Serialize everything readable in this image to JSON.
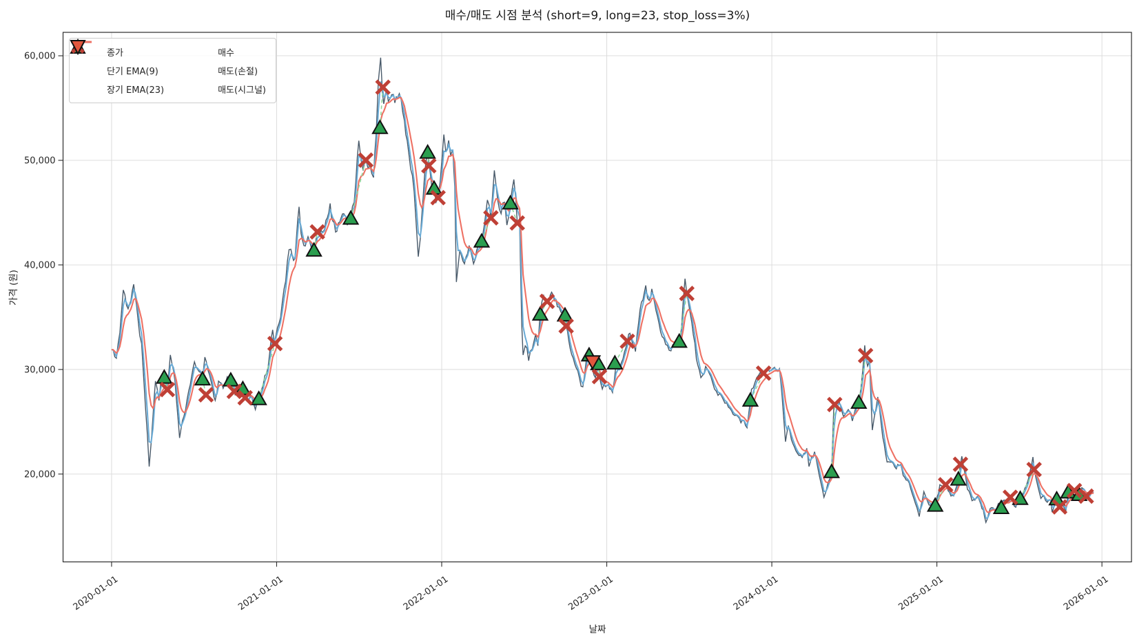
{
  "title": "매수/매도 시점 분석 (short=9, long=23, stop_loss=3%)",
  "axes": {
    "xlabel": "날짜",
    "ylabel": "가격 (원)"
  },
  "legend": {
    "close": "종가",
    "ema_short": "단기 EMA(9)",
    "ema_long": "장기 EMA(23)",
    "buy": "매수",
    "sell_stop": "매도(손절)",
    "sell_signal": "매도(시그널)"
  },
  "colors": {
    "close": "#3e5061",
    "ema_short": "#68aad5",
    "ema_long": "#ee7164",
    "buy": "#2b9e4f",
    "sell_stop": "#bf4036",
    "sell_signal": "#e2573e",
    "connector": "#8fd79b",
    "grid": "#dcdcdc",
    "spine": "#2b2b2b",
    "text": "#262626"
  },
  "chart_data": {
    "type": "line",
    "title": "매수/매도 시점 분석 (short=9, long=23, stop_loss=3%)",
    "xlabel": "날짜",
    "ylabel": "가격 (원)",
    "x_unit": "decimal_year",
    "y_unit": "KRW",
    "grid": true,
    "legend_position": "upper left",
    "xlim": [
      2019.706,
      2026.179
    ],
    "ylim": [
      11600,
      62240
    ],
    "x_ticks": [
      {
        "label": "2020-01-01",
        "t": 2020
      },
      {
        "label": "2021-01-01",
        "t": 2021
      },
      {
        "label": "2022-01-01",
        "t": 2022
      },
      {
        "label": "2023-01-01",
        "t": 2023
      },
      {
        "label": "2024-01-01",
        "t": 2024
      },
      {
        "label": "2025-01-01",
        "t": 2025
      },
      {
        "label": "2026-01-01",
        "t": 2026
      }
    ],
    "y_ticks": [
      {
        "label": "20,000",
        "value": 20000
      },
      {
        "label": "30,000",
        "value": 30000
      },
      {
        "label": "40,000",
        "value": 40000
      },
      {
        "label": "50,000",
        "value": 50000
      },
      {
        "label": "60,000",
        "value": 60000
      }
    ],
    "series_meta": {
      "close_label": "종가",
      "ema_short_label": "단기 EMA(9)",
      "ema_short_period": 9,
      "ema_long_label": "장기 EMA(23)",
      "ema_long_period": 23,
      "stop_loss_pct": 3
    },
    "close_price_anchors": [
      [
        2020.0,
        31900
      ],
      [
        2020.029,
        31070
      ],
      [
        2020.05,
        33500
      ],
      [
        2020.071,
        37600
      ],
      [
        2020.1,
        35800
      ],
      [
        2020.134,
        38150
      ],
      [
        2020.159,
        35000
      ],
      [
        2020.182,
        32480
      ],
      [
        2020.205,
        26500
      ],
      [
        2020.228,
        20720
      ],
      [
        2020.251,
        25500
      ],
      [
        2020.266,
        28890
      ],
      [
        2020.287,
        27040
      ],
      [
        2020.301,
        29215
      ],
      [
        2020.322,
        29000
      ],
      [
        2020.338,
        28100
      ],
      [
        2020.356,
        31390
      ],
      [
        2020.384,
        28890
      ],
      [
        2020.412,
        23450
      ],
      [
        2020.438,
        25500
      ],
      [
        2020.468,
        28000
      ],
      [
        2020.502,
        30740
      ],
      [
        2020.53,
        29800
      ],
      [
        2020.551,
        29100
      ],
      [
        2020.565,
        31180
      ],
      [
        2020.593,
        29500
      ],
      [
        2020.628,
        27040
      ],
      [
        2020.648,
        28890
      ],
      [
        2020.676,
        28200
      ],
      [
        2020.701,
        29300
      ],
      [
        2020.722,
        29000
      ],
      [
        2020.743,
        27905
      ],
      [
        2020.764,
        27600
      ],
      [
        2020.795,
        28170
      ],
      [
        2020.809,
        27295
      ],
      [
        2020.831,
        27000
      ],
      [
        2020.848,
        27400
      ],
      [
        2020.871,
        26165
      ],
      [
        2020.892,
        27210
      ],
      [
        2020.919,
        28600
      ],
      [
        2020.948,
        30200
      ],
      [
        2020.976,
        33790
      ],
      [
        2020.985,
        32600
      ],
      [
        2021.024,
        34985
      ],
      [
        2021.045,
        37700
      ],
      [
        2021.065,
        40330
      ],
      [
        2021.086,
        41500
      ],
      [
        2021.111,
        40600
      ],
      [
        2021.136,
        45555
      ],
      [
        2021.148,
        43000
      ],
      [
        2021.165,
        41850
      ],
      [
        2021.19,
        42700
      ],
      [
        2021.211,
        41600
      ],
      [
        2021.226,
        41420
      ],
      [
        2021.247,
        43160
      ],
      [
        2021.269,
        43300
      ],
      [
        2021.29,
        43400
      ],
      [
        2021.307,
        44500
      ],
      [
        2021.324,
        45880
      ],
      [
        2021.34,
        44200
      ],
      [
        2021.357,
        43140
      ],
      [
        2021.382,
        44100
      ],
      [
        2021.407,
        44900
      ],
      [
        2021.428,
        43800
      ],
      [
        2021.449,
        44470
      ],
      [
        2021.47,
        46000
      ],
      [
        2021.498,
        51875
      ],
      [
        2021.512,
        50000
      ],
      [
        2021.524,
        49020
      ],
      [
        2021.54,
        50020
      ],
      [
        2021.553,
        49300
      ],
      [
        2021.566,
        49480
      ],
      [
        2021.587,
        48370
      ],
      [
        2021.603,
        52500
      ],
      [
        2021.616,
        57520
      ],
      [
        2021.63,
        59820
      ],
      [
        2021.641,
        56500
      ],
      [
        2021.649,
        55400
      ],
      [
        2021.666,
        56800
      ],
      [
        2021.687,
        55900
      ],
      [
        2021.708,
        56300
      ],
      [
        2021.733,
        56000
      ],
      [
        2021.754,
        55820
      ],
      [
        2021.774,
        53800
      ],
      [
        2021.791,
        51900
      ],
      [
        2021.812,
        49150
      ],
      [
        2021.833,
        47000
      ],
      [
        2021.845,
        44000
      ],
      [
        2021.858,
        40790
      ],
      [
        2021.87,
        42500
      ],
      [
        2021.887,
        46300
      ],
      [
        2021.904,
        49800
      ],
      [
        2021.915,
        50780
      ],
      [
        2021.929,
        49000
      ],
      [
        2021.941,
        47300
      ],
      [
        2021.954,
        47340
      ],
      [
        2021.966,
        46000
      ],
      [
        2021.978,
        46430
      ],
      [
        2021.991,
        48000
      ],
      [
        2022.013,
        52470
      ],
      [
        2022.025,
        50800
      ],
      [
        2022.042,
        51900
      ],
      [
        2022.054,
        50500
      ],
      [
        2022.067,
        51000
      ],
      [
        2022.079,
        47500
      ],
      [
        2022.089,
        38365
      ],
      [
        2022.11,
        41420
      ],
      [
        2022.138,
        40110
      ],
      [
        2022.166,
        41850
      ],
      [
        2022.193,
        40110
      ],
      [
        2022.221,
        41850
      ],
      [
        2022.242,
        42280
      ],
      [
        2022.277,
        46210
      ],
      [
        2022.298,
        44500
      ],
      [
        2022.319,
        49040
      ],
      [
        2022.339,
        46210
      ],
      [
        2022.36,
        44900
      ],
      [
        2022.381,
        45995
      ],
      [
        2022.395,
        43810
      ],
      [
        2022.416,
        45930
      ],
      [
        2022.437,
        48170
      ],
      [
        2022.458,
        44010
      ],
      [
        2022.472,
        44030
      ],
      [
        2022.479,
        38800
      ],
      [
        2022.485,
        34225
      ],
      [
        2022.493,
        31390
      ],
      [
        2022.506,
        32265
      ],
      [
        2022.527,
        30845
      ],
      [
        2022.548,
        31940
      ],
      [
        2022.569,
        33355
      ],
      [
        2022.583,
        32265
      ],
      [
        2022.597,
        35500
      ],
      [
        2022.618,
        37060
      ],
      [
        2022.639,
        36515
      ],
      [
        2022.666,
        37390
      ],
      [
        2022.701,
        36000
      ],
      [
        2022.722,
        35500
      ],
      [
        2022.747,
        35210
      ],
      [
        2022.754,
        34160
      ],
      [
        2022.778,
        32045
      ],
      [
        2022.806,
        30520
      ],
      [
        2022.834,
        29215
      ],
      [
        2022.855,
        28345
      ],
      [
        2022.882,
        31720
      ],
      [
        2022.893,
        31390
      ],
      [
        2022.914,
        30000
      ],
      [
        2022.931,
        29215
      ],
      [
        2022.949,
        30565
      ],
      [
        2022.956,
        29320
      ],
      [
        2022.973,
        28125
      ],
      [
        2023.001,
        28450
      ],
      [
        2023.035,
        27795
      ],
      [
        2023.056,
        30520
      ],
      [
        2023.077,
        30000
      ],
      [
        2023.098,
        31000
      ],
      [
        2023.125,
        32700
      ],
      [
        2023.14,
        33460
      ],
      [
        2023.174,
        31720
      ],
      [
        2023.202,
        35755
      ],
      [
        2023.236,
        38040
      ],
      [
        2023.257,
        36600
      ],
      [
        2023.273,
        37710
      ],
      [
        2023.307,
        35100
      ],
      [
        2023.336,
        33135
      ],
      [
        2023.378,
        31830
      ],
      [
        2023.411,
        32300
      ],
      [
        2023.439,
        32700
      ],
      [
        2023.453,
        33920
      ],
      [
        2023.474,
        38690
      ],
      [
        2023.485,
        37270
      ],
      [
        2023.515,
        34500
      ],
      [
        2023.543,
        31000
      ],
      [
        2023.57,
        29215
      ],
      [
        2023.599,
        30300
      ],
      [
        2023.62,
        29670
      ],
      [
        2023.653,
        28125
      ],
      [
        2023.695,
        27470
      ],
      [
        2023.737,
        26385
      ],
      [
        2023.794,
        25510
      ],
      [
        2023.85,
        24425
      ],
      [
        2023.87,
        27075
      ],
      [
        2023.877,
        28125
      ],
      [
        2023.919,
        29430
      ],
      [
        2023.95,
        29650
      ],
      [
        2023.975,
        30080
      ],
      [
        2024.027,
        29900
      ],
      [
        2024.046,
        30080
      ],
      [
        2024.062,
        27500
      ],
      [
        2024.083,
        23100
      ],
      [
        2024.1,
        24640
      ],
      [
        2024.128,
        22895
      ],
      [
        2024.154,
        22020
      ],
      [
        2024.184,
        21585
      ],
      [
        2024.212,
        22460
      ],
      [
        2024.225,
        20720
      ],
      [
        2024.259,
        22130
      ],
      [
        2024.288,
        19845
      ],
      [
        2024.316,
        17780
      ],
      [
        2024.338,
        19000
      ],
      [
        2024.362,
        20240
      ],
      [
        2024.367,
        22500
      ],
      [
        2024.376,
        26600
      ],
      [
        2024.405,
        27050
      ],
      [
        2024.434,
        25510
      ],
      [
        2024.463,
        26165
      ],
      [
        2024.488,
        25075
      ],
      [
        2024.518,
        26820
      ],
      [
        2024.527,
        26865
      ],
      [
        2024.542,
        28500
      ],
      [
        2024.563,
        32310
      ],
      [
        2024.568,
        31330
      ],
      [
        2024.58,
        30325
      ],
      [
        2024.592,
        30800
      ],
      [
        2024.609,
        24200
      ],
      [
        2024.642,
        27365
      ],
      [
        2024.672,
        23540
      ],
      [
        2024.698,
        21155
      ],
      [
        2024.726,
        21155
      ],
      [
        2024.754,
        20500
      ],
      [
        2024.781,
        20935
      ],
      [
        2024.796,
        19855
      ],
      [
        2024.823,
        19410
      ],
      [
        2024.851,
        18105
      ],
      [
        2024.879,
        16800
      ],
      [
        2024.893,
        15935
      ],
      [
        2024.921,
        18320
      ],
      [
        2024.942,
        17450
      ],
      [
        2024.963,
        17020
      ],
      [
        2024.99,
        17020
      ],
      [
        2025.001,
        17800
      ],
      [
        2025.018,
        18980
      ],
      [
        2025.053,
        18980
      ],
      [
        2025.068,
        18400
      ],
      [
        2025.085,
        17900
      ],
      [
        2025.102,
        17905
      ],
      [
        2025.123,
        19000
      ],
      [
        2025.13,
        19525
      ],
      [
        2025.143,
        20935
      ],
      [
        2025.151,
        21700
      ],
      [
        2025.164,
        20500
      ],
      [
        2025.185,
        18540
      ],
      [
        2025.213,
        17450
      ],
      [
        2025.248,
        17890
      ],
      [
        2025.266,
        17125
      ],
      [
        2025.281,
        16600
      ],
      [
        2025.297,
        15380
      ],
      [
        2025.315,
        16300
      ],
      [
        2025.331,
        16800
      ],
      [
        2025.352,
        16500
      ],
      [
        2025.373,
        17200
      ],
      [
        2025.39,
        17000
      ],
      [
        2025.406,
        17500
      ],
      [
        2025.427,
        17300
      ],
      [
        2025.445,
        17780
      ],
      [
        2025.457,
        17500
      ],
      [
        2025.469,
        16930
      ],
      [
        2025.486,
        17200
      ],
      [
        2025.505,
        17670
      ],
      [
        2025.523,
        18200
      ],
      [
        2025.544,
        19000
      ],
      [
        2025.565,
        20300
      ],
      [
        2025.582,
        21630
      ],
      [
        2025.589,
        20435
      ],
      [
        2025.602,
        19500
      ],
      [
        2025.63,
        17670
      ],
      [
        2025.648,
        17900
      ],
      [
        2025.669,
        17300
      ],
      [
        2025.69,
        17500
      ],
      [
        2025.698,
        16360
      ],
      [
        2025.726,
        17630
      ],
      [
        2025.744,
        16900
      ],
      [
        2025.757,
        17300
      ],
      [
        2025.782,
        16500
      ],
      [
        2025.796,
        18290
      ],
      [
        2025.812,
        18000
      ],
      [
        2025.829,
        18500
      ],
      [
        2025.845,
        18300
      ],
      [
        2025.862,
        18050
      ],
      [
        2025.878,
        18700
      ],
      [
        2025.892,
        18540
      ],
      [
        2025.905,
        17890
      ],
      [
        2025.92,
        17900
      ],
      [
        2025.935,
        18300
      ],
      [
        2025.95,
        18210
      ]
    ],
    "signals": {
      "buy": [
        [
          2020.319,
          29260
        ],
        [
          2020.551,
          29100
        ],
        [
          2020.722,
          29000
        ],
        [
          2020.795,
          28170
        ],
        [
          2020.892,
          27210
        ],
        [
          2021.226,
          41420
        ],
        [
          2021.449,
          44470
        ],
        [
          2021.626,
          53140
        ],
        [
          2021.915,
          50780
        ],
        [
          2021.954,
          47340
        ],
        [
          2022.242,
          42280
        ],
        [
          2022.416,
          45930
        ],
        [
          2022.597,
          35300
        ],
        [
          2022.747,
          35210
        ],
        [
          2022.893,
          31390
        ],
        [
          2022.949,
          30565
        ],
        [
          2023.049,
          30630
        ],
        [
          2023.439,
          32700
        ],
        [
          2023.87,
          27075
        ],
        [
          2024.362,
          20240
        ],
        [
          2024.527,
          26865
        ],
        [
          2024.99,
          17020
        ],
        [
          2025.13,
          19525
        ],
        [
          2025.39,
          16800
        ],
        [
          2025.505,
          17670
        ],
        [
          2025.726,
          17630
        ],
        [
          2025.796,
          18290
        ],
        [
          2025.862,
          18050
        ]
      ],
      "sell_stop": [
        [
          2020.338,
          28080
        ],
        [
          2020.572,
          27580
        ],
        [
          2020.743,
          27905
        ],
        [
          2020.809,
          27295
        ],
        [
          2020.99,
          32480
        ],
        [
          2021.247,
          43160
        ],
        [
          2021.54,
          50020
        ],
        [
          2021.644,
          56990
        ],
        [
          2021.922,
          49480
        ],
        [
          2021.978,
          46430
        ],
        [
          2022.298,
          44500
        ],
        [
          2022.458,
          44010
        ],
        [
          2022.639,
          36515
        ],
        [
          2022.754,
          34160
        ],
        [
          2022.956,
          29320
        ],
        [
          2023.125,
          32700
        ],
        [
          2023.485,
          37270
        ],
        [
          2023.95,
          29650
        ],
        [
          2024.381,
          26645
        ],
        [
          2024.568,
          31330
        ],
        [
          2025.053,
          18980
        ],
        [
          2025.143,
          20935
        ],
        [
          2025.445,
          17780
        ],
        [
          2025.589,
          20435
        ],
        [
          2025.744,
          16860
        ],
        [
          2025.833,
          18420
        ],
        [
          2025.905,
          17890
        ]
      ],
      "sell_signal": [
        [
          2022.914,
          30735
        ]
      ]
    },
    "show_trade_connectors": true
  }
}
